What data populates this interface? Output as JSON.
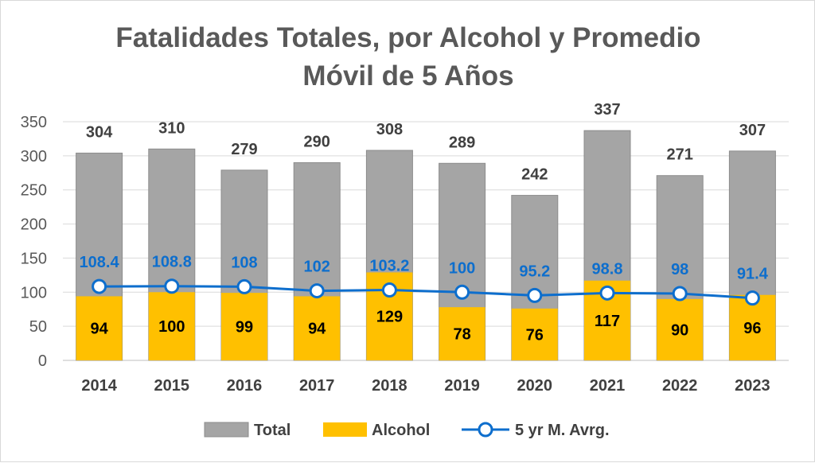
{
  "chart_data": {
    "type": "bar",
    "title_line1": "Fatalidades Totales, por Alcohol y Promedio",
    "title_line2": "Móvil de 5 Años",
    "categories": [
      "2014",
      "2015",
      "2016",
      "2017",
      "2018",
      "2019",
      "2020",
      "2021",
      "2022",
      "2023"
    ],
    "series": [
      {
        "name": "Total",
        "kind": "bar",
        "color": "#a5a5a5",
        "values": [
          304,
          310,
          279,
          290,
          308,
          289,
          242,
          337,
          271,
          307
        ]
      },
      {
        "name": "Alcohol",
        "kind": "bar",
        "color": "#ffc000",
        "values": [
          94,
          100,
          99,
          94,
          129,
          78,
          76,
          117,
          90,
          96
        ]
      },
      {
        "name": "5 yr M. Avrg.",
        "kind": "line",
        "color": "#0d6ecd",
        "values": [
          108.4,
          108.8,
          108,
          102,
          103.2,
          100,
          95.2,
          98.8,
          98,
          91.4
        ]
      }
    ],
    "ylim": [
      0,
      350
    ],
    "yticks": [
      "0",
      "50",
      "100",
      "150",
      "200",
      "250",
      "300",
      "350"
    ],
    "grid": true,
    "legend_position": "bottom"
  }
}
